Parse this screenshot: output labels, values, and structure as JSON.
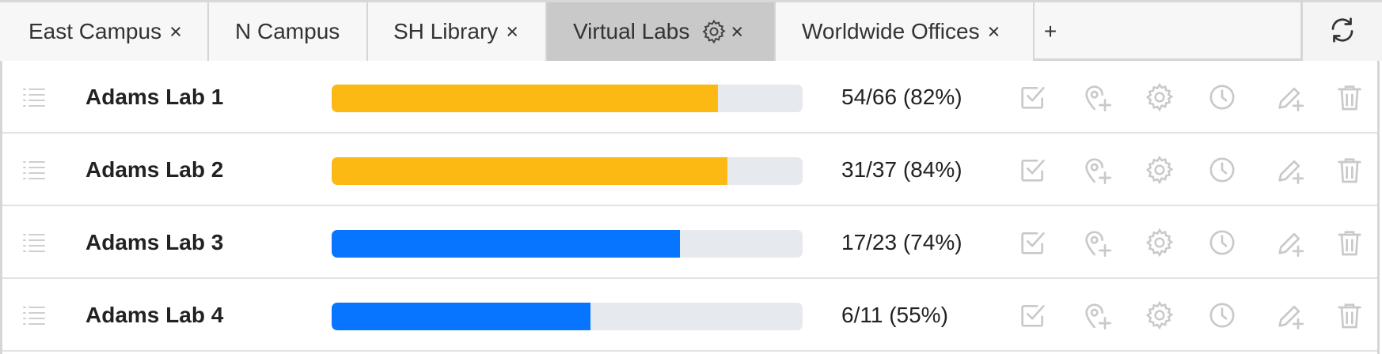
{
  "tabs": [
    {
      "label": "East Campus",
      "close": "×",
      "active": false
    },
    {
      "label": "N Campus",
      "close": "",
      "active": false
    },
    {
      "label": "SH Library",
      "close": "×",
      "active": false
    },
    {
      "label": "Virtual Labs",
      "close": "×",
      "active": true,
      "gear_icon": "gear-icon"
    },
    {
      "label": "Worldwide Offices",
      "close": "×",
      "active": false
    }
  ],
  "add_tab_label": "+",
  "refresh_icon": "refresh-icon",
  "colors": {
    "warning": "#fdb913",
    "primary": "#0775ff",
    "track": "#e6e9ed",
    "icon": "#c9c9c9"
  },
  "rows": [
    {
      "name": "Adams Lab 1",
      "count": "54/66 (82%)",
      "progress": 0.82,
      "color": "#fdb913"
    },
    {
      "name": "Adams Lab 2",
      "count": "31/37 (84%)",
      "progress": 0.84,
      "color": "#fdb913"
    },
    {
      "name": "Adams Lab 3",
      "count": "17/23 (74%)",
      "progress": 0.74,
      "color": "#0775ff"
    },
    {
      "name": "Adams Lab 4",
      "count": "6/11 (55%)",
      "progress": 0.55,
      "color": "#0775ff"
    }
  ],
  "row_actions": [
    "checkbox-icon",
    "add-location-icon",
    "gear-icon",
    "clock-icon",
    "edit-add-icon",
    "trash-icon"
  ]
}
